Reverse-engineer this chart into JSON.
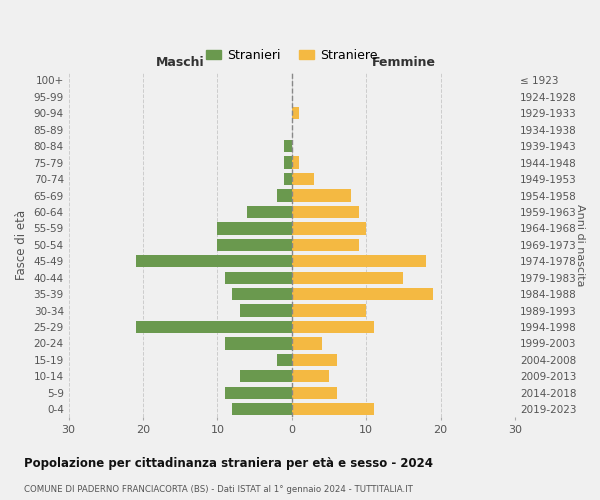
{
  "age_groups_bottom_to_top": [
    "0-4",
    "5-9",
    "10-14",
    "15-19",
    "20-24",
    "25-29",
    "30-34",
    "35-39",
    "40-44",
    "45-49",
    "50-54",
    "55-59",
    "60-64",
    "65-69",
    "70-74",
    "75-79",
    "80-84",
    "85-89",
    "90-94",
    "95-99",
    "100+"
  ],
  "birth_years_bottom_to_top": [
    "2019-2023",
    "2014-2018",
    "2009-2013",
    "2004-2008",
    "1999-2003",
    "1994-1998",
    "1989-1993",
    "1984-1988",
    "1979-1983",
    "1974-1978",
    "1969-1973",
    "1964-1968",
    "1959-1963",
    "1954-1958",
    "1949-1953",
    "1944-1948",
    "1939-1943",
    "1934-1938",
    "1929-1933",
    "1924-1928",
    "≤ 1923"
  ],
  "males_bottom_to_top": [
    8,
    9,
    7,
    2,
    9,
    21,
    7,
    8,
    9,
    21,
    10,
    10,
    6,
    2,
    1,
    1,
    1,
    0,
    0,
    0,
    0
  ],
  "females_bottom_to_top": [
    11,
    6,
    5,
    6,
    4,
    11,
    10,
    19,
    15,
    18,
    9,
    10,
    9,
    8,
    3,
    1,
    0,
    0,
    1,
    0,
    0
  ],
  "male_color": "#6a994e",
  "female_color": "#f4b942",
  "background_color": "#f0f0f0",
  "grid_color": "#cccccc",
  "title": "Popolazione per cittadinanza straniera per età e sesso - 2024",
  "subtitle": "COMUNE DI PADERNO FRANCIACORTA (BS) - Dati ISTAT al 1° gennaio 2024 - TUTTITALIA.IT",
  "xlabel_left": "Maschi",
  "xlabel_right": "Femmine",
  "ylabel_left": "Fasce di età",
  "ylabel_right": "Anni di nascita",
  "legend_male": "Stranieri",
  "legend_female": "Straniere",
  "xlim": 30,
  "bar_height": 0.75
}
